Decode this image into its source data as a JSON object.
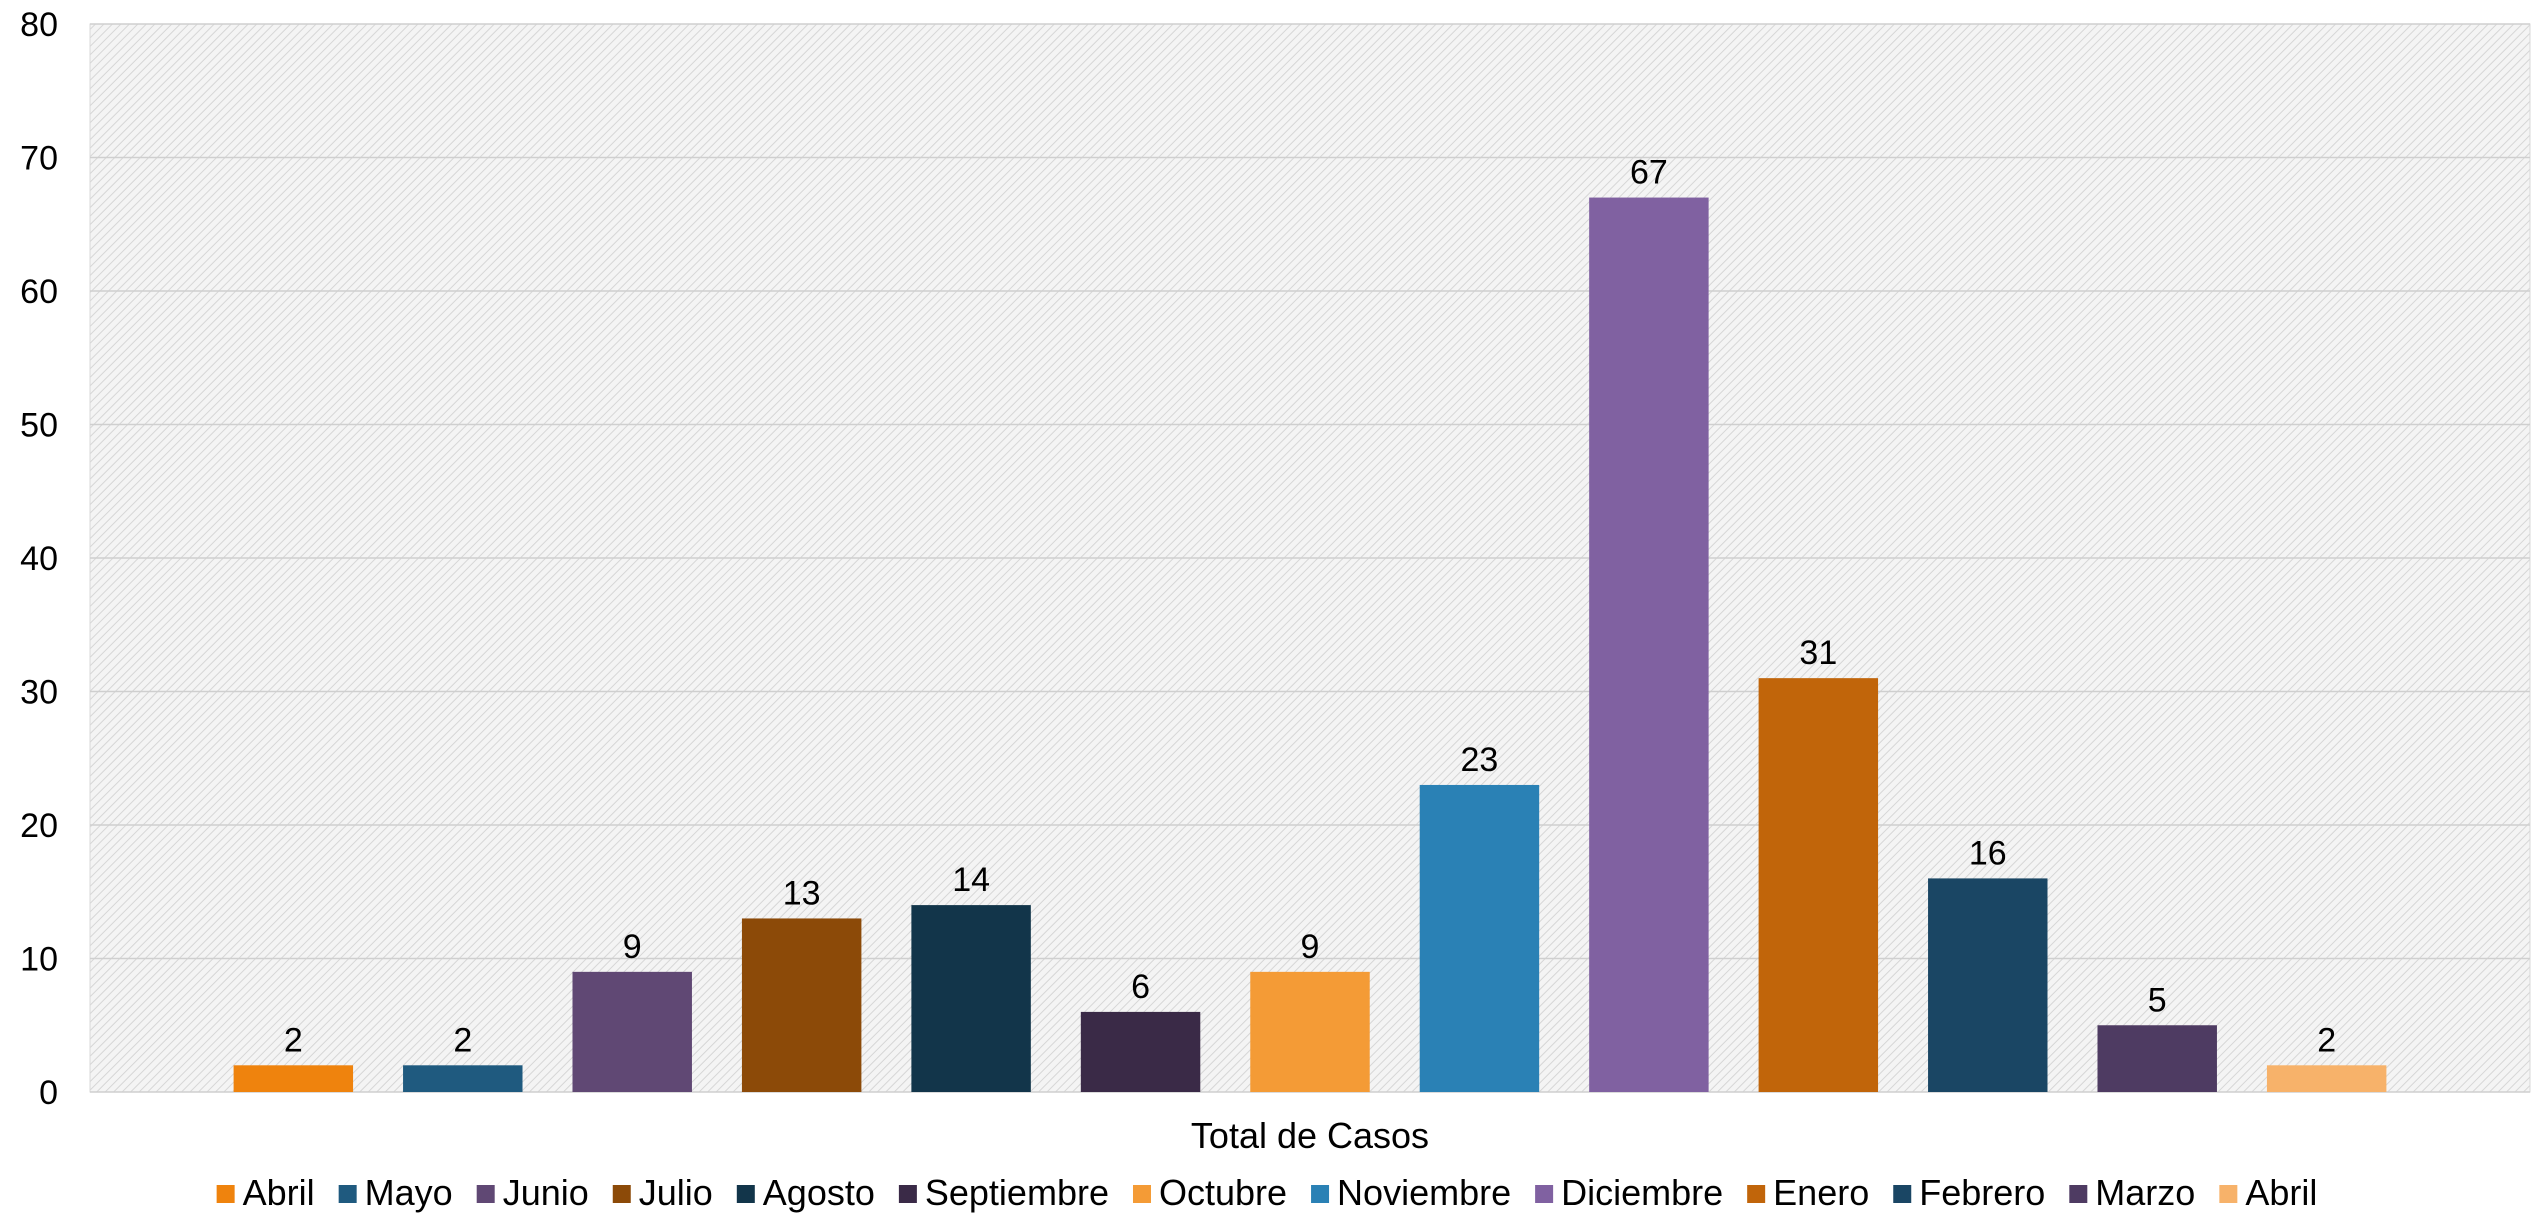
{
  "chart_data": {
    "type": "bar",
    "xlabel": "Total de Casos",
    "ylabel": "",
    "ylim": [
      0,
      80
    ],
    "yticks": [
      0,
      10,
      20,
      30,
      40,
      50,
      60,
      70,
      80
    ],
    "grid": true,
    "legend_position": "bottom",
    "series": [
      {
        "name": "Abril",
        "value": 2,
        "color": "#EF830D"
      },
      {
        "name": "Mayo",
        "value": 2,
        "color": "#1F5A7F"
      },
      {
        "name": "Junio",
        "value": 9,
        "color": "#604874"
      },
      {
        "name": "Julio",
        "value": 13,
        "color": "#8C4A08"
      },
      {
        "name": "Agosto",
        "value": 14,
        "color": "#12354A"
      },
      {
        "name": "Septiembre",
        "value": 6,
        "color": "#3A2A47"
      },
      {
        "name": "Octubre",
        "value": 9,
        "color": "#F49B36"
      },
      {
        "name": "Noviembre",
        "value": 23,
        "color": "#2A81B5"
      },
      {
        "name": "Diciembre",
        "value": 67,
        "color": "#8061A1"
      },
      {
        "name": "Enero",
        "value": 31,
        "color": "#C1650A"
      },
      {
        "name": "Febrero",
        "value": 16,
        "color": "#1A4664"
      },
      {
        "name": "Marzo",
        "value": 5,
        "color": "#4E3B62"
      },
      {
        "name": "Abril",
        "value": 2,
        "color": "#F7B26A"
      }
    ]
  }
}
